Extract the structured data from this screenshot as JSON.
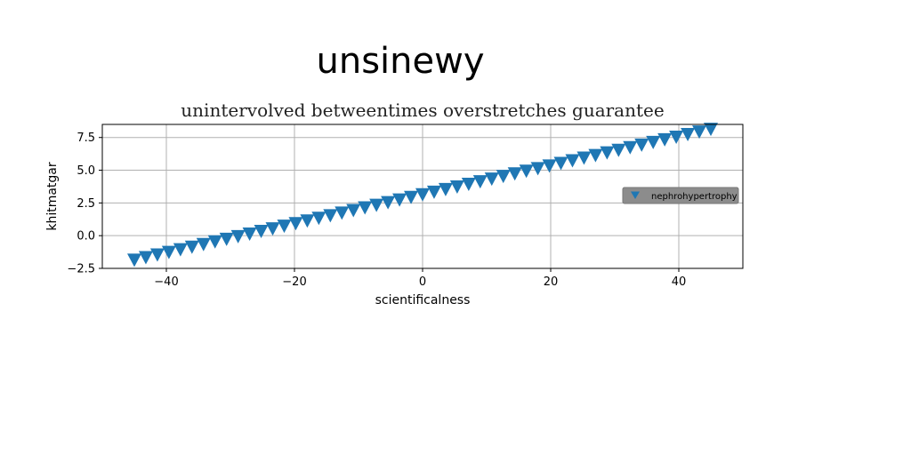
{
  "chart_data": {
    "type": "scatter",
    "suptitle": "unsinewy",
    "title": "unintervolved betweentimes overstretches guarantee",
    "xlabel": "scientificalness",
    "ylabel": "khitmatgar",
    "xlim": [
      -50,
      50
    ],
    "ylim": [
      -2.5,
      8.5
    ],
    "xticks": [
      -40,
      -20,
      0,
      20,
      40
    ],
    "yticks": [
      -2.5,
      0.0,
      2.5,
      5.0,
      7.5
    ],
    "xtick_labels": [
      "−40",
      "−20",
      "0",
      "20",
      "40"
    ],
    "ytick_labels": [
      "−2.5",
      "0.0",
      "2.5",
      "5.0",
      "7.5"
    ],
    "grid": true,
    "legend_position": "center-right",
    "marker": "triangle-down",
    "series": [
      {
        "name": "nephrohypertrophy",
        "color": "#1f77b4",
        "x": [
          -45.0,
          -43.2,
          -41.4,
          -39.6,
          -37.8,
          -36.0,
          -34.2,
          -32.4,
          -30.6,
          -28.8,
          -27.0,
          -25.2,
          -23.4,
          -21.6,
          -19.8,
          -18.0,
          -16.2,
          -14.4,
          -12.6,
          -10.8,
          -9.0,
          -7.2,
          -5.4,
          -3.6,
          -1.8,
          0.0,
          1.8,
          3.6,
          5.4,
          7.2,
          9.0,
          10.8,
          12.6,
          14.4,
          16.2,
          18.0,
          19.8,
          21.6,
          23.4,
          25.2,
          27.0,
          28.8,
          30.6,
          32.4,
          34.2,
          36.0,
          37.8,
          39.6,
          41.4,
          43.2,
          45.0
        ],
        "y": [
          -1.85,
          -1.65,
          -1.45,
          -1.25,
          -1.05,
          -0.85,
          -0.65,
          -0.45,
          -0.25,
          -0.05,
          0.15,
          0.35,
          0.55,
          0.75,
          0.95,
          1.15,
          1.35,
          1.55,
          1.75,
          1.95,
          2.15,
          2.35,
          2.55,
          2.75,
          2.95,
          3.15,
          3.35,
          3.55,
          3.75,
          3.95,
          4.15,
          4.35,
          4.55,
          4.75,
          4.95,
          5.15,
          5.35,
          5.55,
          5.75,
          5.95,
          6.15,
          6.35,
          6.55,
          6.75,
          6.95,
          7.15,
          7.35,
          7.55,
          7.75,
          7.95,
          8.15
        ]
      }
    ]
  }
}
